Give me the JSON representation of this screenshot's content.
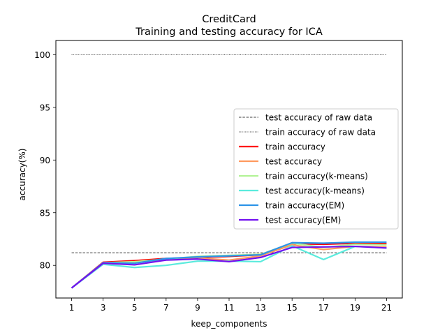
{
  "chart_data": {
    "type": "line",
    "title": "CreditCard",
    "subtitle": "Training and testing accuracy for ICA",
    "xlabel": "keep_components",
    "ylabel": "accuracy(%)",
    "x": [
      1,
      3,
      5,
      7,
      9,
      11,
      13,
      15,
      17,
      19,
      21
    ],
    "xlim": [
      0,
      22
    ],
    "ylim": [
      76.9,
      101.35
    ],
    "xticks": [
      1,
      3,
      5,
      7,
      9,
      11,
      13,
      15,
      17,
      19,
      21
    ],
    "yticks": [
      80,
      85,
      90,
      95,
      100
    ],
    "grid": false,
    "legend_position": "center-right",
    "reference_lines": [
      {
        "name": "test accuracy of raw data",
        "value": 81.2,
        "style": "dashed",
        "color": "#000000"
      },
      {
        "name": "train accuracy of raw data",
        "value": 100.0,
        "style": "dotted",
        "color": "#000000"
      }
    ],
    "series": [
      {
        "name": "train accuracy",
        "color": "#ff0000",
        "values": [
          77.85,
          80.3,
          80.45,
          80.65,
          80.75,
          80.85,
          81.0,
          82.05,
          82.0,
          82.1,
          82.05
        ]
      },
      {
        "name": "test accuracy",
        "color": "#ff9a5e",
        "values": [
          77.85,
          80.25,
          80.3,
          80.55,
          80.7,
          80.5,
          80.9,
          81.95,
          81.5,
          81.8,
          81.75
        ]
      },
      {
        "name": "train accuracy(k-means)",
        "color": "#b2f396",
        "values": [
          77.85,
          80.25,
          80.35,
          80.6,
          80.85,
          80.95,
          81.05,
          82.1,
          81.7,
          82.0,
          81.95
        ]
      },
      {
        "name": "test accuracy(k-means)",
        "color": "#5bebdd",
        "values": [
          77.85,
          80.1,
          79.8,
          80.0,
          80.4,
          80.4,
          80.35,
          81.85,
          80.55,
          81.8,
          81.65
        ]
      },
      {
        "name": "train accuracy(EM)",
        "color": "#2c93e8",
        "values": [
          77.85,
          80.25,
          80.2,
          80.65,
          80.8,
          80.9,
          81.0,
          82.15,
          82.1,
          82.2,
          82.2
        ]
      },
      {
        "name": "test accuracy(EM)",
        "color": "#7210f0",
        "values": [
          77.85,
          80.2,
          80.05,
          80.5,
          80.6,
          80.35,
          80.75,
          81.7,
          81.75,
          81.8,
          81.65
        ]
      }
    ]
  }
}
